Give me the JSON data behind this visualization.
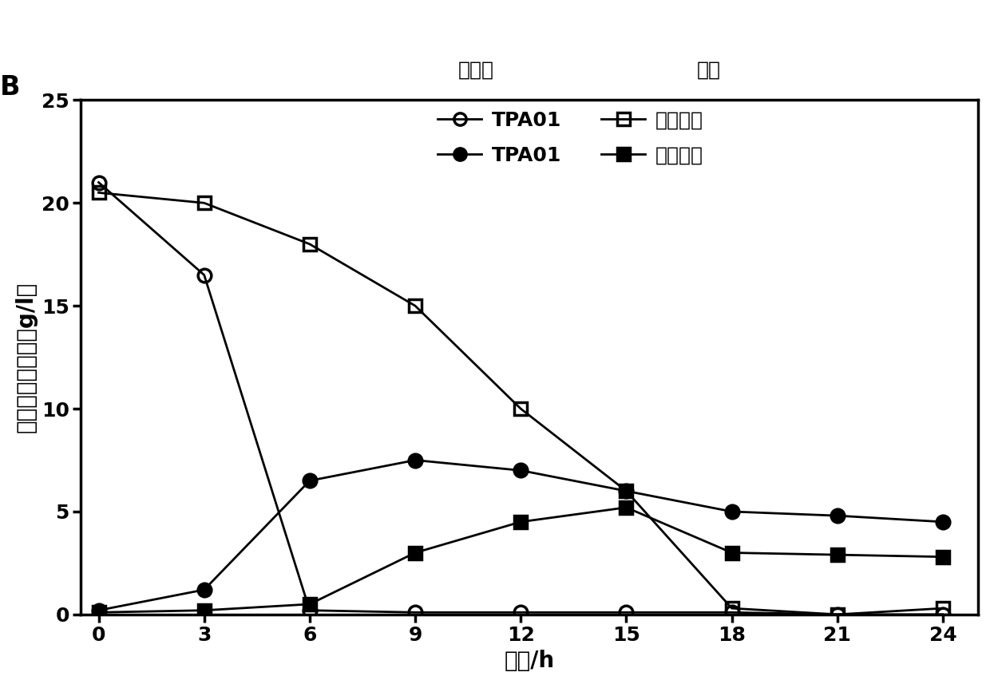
{
  "title_label": "B",
  "xlabel": "时间/h",
  "ylabel": "乙醒葡萄糖浓度（g/l）",
  "xlim": [
    -0.5,
    25
  ],
  "ylim": [
    0,
    25
  ],
  "yticks": [
    0,
    5,
    10,
    15,
    20,
    25
  ],
  "xticks": [
    0,
    3,
    6,
    9,
    12,
    15,
    18,
    21,
    24
  ],
  "legend_glucose": "葡萄糖",
  "legend_ethanol": "乙醒",
  "legend_TPA01": "TPA01",
  "legend_original": "原始菌株",
  "glucose_TPA01": {
    "x": [
      0,
      3,
      6,
      9,
      12,
      15,
      18,
      21,
      24
    ],
    "y": [
      21.0,
      16.5,
      0.2,
      0.1,
      0.1,
      0.1,
      0.1,
      0.0,
      0.0
    ],
    "color": "black",
    "marker": "o",
    "fillstyle": "none",
    "linewidth": 2.0,
    "markersize": 12
  },
  "glucose_original": {
    "x": [
      0,
      3,
      6,
      9,
      12,
      15,
      18,
      21,
      24
    ],
    "y": [
      20.5,
      20.0,
      18.0,
      15.0,
      10.0,
      6.0,
      0.3,
      0.0,
      0.3
    ],
    "color": "black",
    "marker": "s",
    "fillstyle": "none",
    "linewidth": 2.0,
    "markersize": 12
  },
  "ethanol_TPA01": {
    "x": [
      0,
      3,
      6,
      9,
      12,
      15,
      18,
      21,
      24
    ],
    "y": [
      0.2,
      1.2,
      6.5,
      7.5,
      7.0,
      6.0,
      5.0,
      4.8,
      4.5
    ],
    "color": "black",
    "marker": "o",
    "fillstyle": "full",
    "linewidth": 2.0,
    "markersize": 12
  },
  "ethanol_original": {
    "x": [
      0,
      3,
      6,
      9,
      12,
      15,
      18,
      21,
      24
    ],
    "y": [
      0.1,
      0.2,
      0.5,
      3.0,
      4.5,
      5.2,
      3.0,
      2.9,
      2.8
    ],
    "color": "black",
    "marker": "s",
    "fillstyle": "full",
    "linewidth": 2.0,
    "markersize": 12
  },
  "background_color": "#ffffff",
  "fontsize_label": 20,
  "fontsize_tick": 18,
  "fontsize_legend": 18,
  "fontsize_title": 24
}
